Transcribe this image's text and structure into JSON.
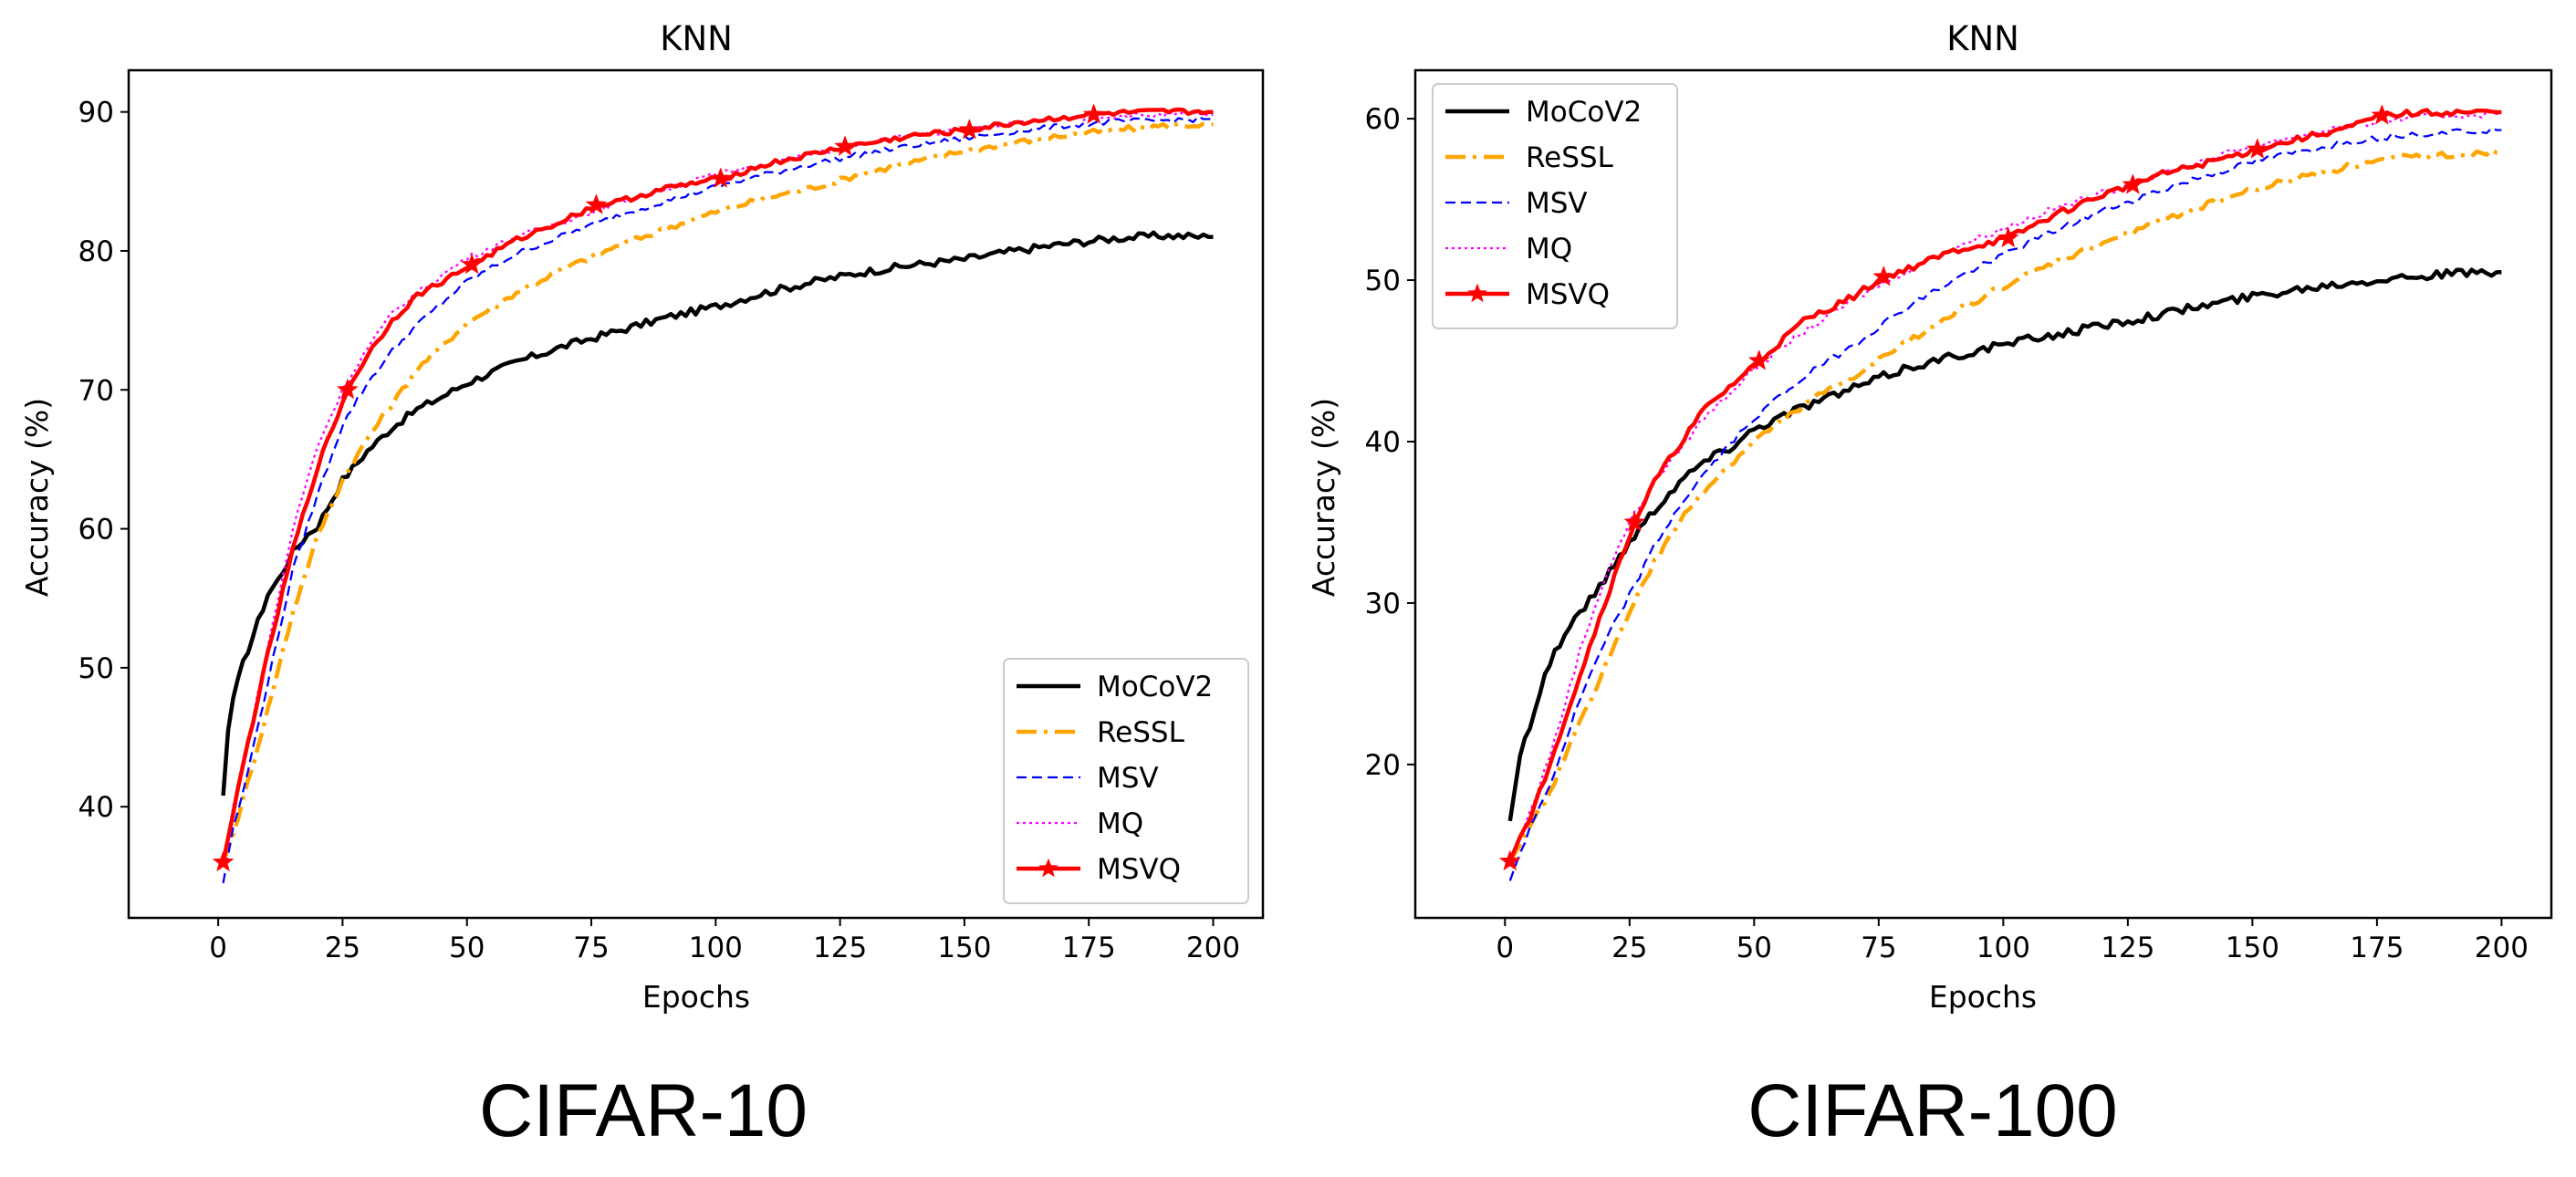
{
  "chart_data": [
    {
      "type": "line",
      "title": "KNN",
      "caption": "CIFAR-10",
      "xlabel": "Epochs",
      "ylabel": "Accuracy (%)",
      "xlim": [
        -18,
        210
      ],
      "ylim": [
        32,
        93
      ],
      "xticks": [
        0,
        25,
        50,
        75,
        100,
        125,
        150,
        175,
        200
      ],
      "yticks": [
        40,
        50,
        60,
        70,
        80,
        90
      ],
      "grid": false,
      "legend_position": "lower-right",
      "series": [
        {
          "name": "MoCoV2",
          "color": "#000000",
          "style": "solid",
          "x": [
            1,
            2,
            3,
            5,
            7,
            10,
            12,
            15,
            18,
            20,
            25,
            30,
            35,
            40,
            45,
            50,
            60,
            70,
            80,
            90,
            100,
            110,
            120,
            130,
            140,
            150,
            160,
            170,
            180,
            190,
            200
          ],
          "y": [
            40.8,
            45.5,
            47.8,
            50.3,
            52.3,
            55.3,
            56.3,
            58.3,
            59.6,
            60.2,
            63.5,
            65.6,
            67.3,
            68.6,
            69.5,
            70.5,
            72.0,
            73.2,
            74.2,
            75.2,
            76.0,
            77.0,
            77.8,
            78.5,
            79.0,
            79.4,
            80.0,
            80.5,
            80.9,
            81.1,
            81.0
          ]
        },
        {
          "name": "ReSSL",
          "color": "#FFA500",
          "style": "dashdot",
          "x": [
            1,
            3,
            5,
            10,
            15,
            20,
            25,
            30,
            35,
            40,
            50,
            60,
            70,
            80,
            90,
            100,
            110,
            120,
            130,
            140,
            150,
            160,
            170,
            180,
            190,
            200
          ],
          "y": [
            36.0,
            38.0,
            40.5,
            47.0,
            54.0,
            59.5,
            63.5,
            66.5,
            69.0,
            71.5,
            74.8,
            77.0,
            78.8,
            80.3,
            81.6,
            82.8,
            83.8,
            84.6,
            85.6,
            86.4,
            87.2,
            87.8,
            88.3,
            88.7,
            89.0,
            89.1
          ]
        },
        {
          "name": "MSV",
          "color": "#0000FF",
          "style": "dashed",
          "x": [
            1,
            3,
            5,
            10,
            15,
            20,
            25,
            30,
            35,
            40,
            50,
            60,
            70,
            80,
            90,
            100,
            110,
            120,
            130,
            140,
            150,
            160,
            170,
            180,
            190,
            200
          ],
          "y": [
            34.5,
            38.5,
            41.0,
            49.0,
            57.0,
            62.5,
            67.5,
            70.5,
            72.8,
            74.7,
            77.8,
            79.8,
            81.2,
            82.5,
            83.6,
            84.6,
            85.5,
            86.3,
            87.0,
            87.6,
            88.1,
            88.6,
            89.0,
            89.3,
            89.4,
            89.5
          ]
        },
        {
          "name": "MQ",
          "color": "#FF00FF",
          "style": "dotted",
          "x": [
            1,
            3,
            5,
            10,
            15,
            20,
            25,
            30,
            35,
            40,
            50,
            60,
            70,
            80,
            90,
            100,
            110,
            120,
            130,
            140,
            150,
            160,
            170,
            180,
            190,
            200
          ],
          "y": [
            36.0,
            40.0,
            43.0,
            51.5,
            60.0,
            66.0,
            70.0,
            73.0,
            75.5,
            77.0,
            79.5,
            81.0,
            82.2,
            83.4,
            84.5,
            85.5,
            86.3,
            87.0,
            87.7,
            88.3,
            88.8,
            89.2,
            89.5,
            89.7,
            89.8,
            89.8
          ]
        },
        {
          "name": "MSVQ",
          "color": "#FF0000",
          "style": "solid-star",
          "x": [
            1,
            3,
            5,
            10,
            15,
            20,
            26,
            30,
            35,
            40,
            51,
            60,
            70,
            76,
            80,
            90,
            101,
            110,
            120,
            126,
            130,
            140,
            151,
            160,
            170,
            176,
            180,
            190,
            200
          ],
          "y": [
            36.0,
            39.5,
            43.0,
            51.0,
            58.5,
            64.5,
            70.0,
            72.5,
            75.0,
            76.8,
            79.0,
            80.8,
            82.3,
            83.3,
            83.5,
            84.5,
            85.2,
            86.2,
            87.0,
            87.5,
            87.7,
            88.3,
            88.7,
            89.2,
            89.6,
            89.8,
            89.9,
            90.0,
            90.0
          ],
          "markers_x": [
            1,
            26,
            51,
            76,
            101,
            126,
            151,
            176
          ]
        }
      ]
    },
    {
      "type": "line",
      "title": "KNN",
      "caption": "CIFAR-100",
      "xlabel": "Epochs",
      "ylabel": "Accuracy (%)",
      "xlim": [
        -18,
        210
      ],
      "ylim": [
        10.5,
        63
      ],
      "xticks": [
        0,
        25,
        50,
        75,
        100,
        125,
        150,
        175,
        200
      ],
      "yticks": [
        20,
        30,
        40,
        50,
        60
      ],
      "grid": false,
      "legend_position": "upper-left",
      "series": [
        {
          "name": "MoCoV2",
          "color": "#000000",
          "style": "solid",
          "x": [
            1,
            2,
            3,
            5,
            8,
            10,
            13,
            15,
            18,
            20,
            25,
            30,
            35,
            40,
            45,
            50,
            60,
            70,
            80,
            90,
            100,
            110,
            120,
            130,
            140,
            150,
            160,
            170,
            180,
            190,
            200
          ],
          "y": [
            16.5,
            18.5,
            20.5,
            22.5,
            25.5,
            27.0,
            28.5,
            29.5,
            30.5,
            31.5,
            33.8,
            35.8,
            37.5,
            38.8,
            39.6,
            40.8,
            42.2,
            43.3,
            44.5,
            45.3,
            46.0,
            46.6,
            47.2,
            47.8,
            48.4,
            49.0,
            49.5,
            49.9,
            50.2,
            50.4,
            50.5
          ]
        },
        {
          "name": "ReSSL",
          "color": "#FFA500",
          "style": "dashdot",
          "x": [
            1,
            3,
            5,
            10,
            15,
            20,
            25,
            30,
            35,
            40,
            50,
            60,
            70,
            80,
            90,
            100,
            110,
            120,
            130,
            140,
            150,
            160,
            170,
            180,
            190,
            200
          ],
          "y": [
            14.0,
            15.0,
            16.0,
            19.0,
            22.5,
            26.0,
            29.5,
            32.5,
            35.0,
            37.0,
            40.0,
            42.3,
            44.0,
            46.0,
            48.0,
            49.6,
            51.0,
            52.3,
            53.5,
            54.6,
            55.6,
            56.4,
            57.1,
            57.6,
            57.8,
            57.9
          ]
        },
        {
          "name": "MSV",
          "color": "#0000FF",
          "style": "dashed",
          "x": [
            1,
            3,
            5,
            10,
            15,
            20,
            25,
            30,
            35,
            40,
            50,
            60,
            70,
            80,
            90,
            100,
            110,
            120,
            130,
            140,
            150,
            160,
            170,
            180,
            190,
            200
          ],
          "y": [
            12.8,
            14.5,
            16.0,
            19.5,
            24.0,
            27.5,
            30.5,
            33.5,
            36.0,
            38.0,
            41.5,
            44.0,
            46.0,
            48.2,
            50.0,
            51.6,
            53.0,
            54.3,
            55.4,
            56.4,
            57.3,
            58.0,
            58.6,
            59.0,
            59.2,
            59.3
          ]
        },
        {
          "name": "MQ",
          "color": "#FF00FF",
          "style": "dotted",
          "x": [
            1,
            3,
            5,
            10,
            15,
            20,
            25,
            30,
            35,
            40,
            50,
            60,
            70,
            80,
            90,
            100,
            110,
            120,
            130,
            140,
            150,
            160,
            170,
            180,
            190,
            200
          ],
          "y": [
            14.0,
            15.5,
            17.0,
            21.5,
            27.0,
            31.5,
            35.0,
            37.5,
            39.5,
            41.5,
            44.5,
            46.8,
            48.8,
            50.5,
            52.0,
            53.2,
            54.4,
            55.4,
            56.4,
            57.4,
            58.3,
            59.0,
            59.6,
            60.0,
            60.2,
            60.3
          ]
        },
        {
          "name": "MSVQ",
          "color": "#FF0000",
          "style": "solid-star",
          "x": [
            1,
            3,
            5,
            10,
            15,
            20,
            26,
            30,
            35,
            40,
            51,
            60,
            70,
            76,
            80,
            90,
            101,
            110,
            120,
            126,
            130,
            140,
            151,
            160,
            170,
            176,
            180,
            190,
            200
          ],
          "y": [
            14.0,
            15.5,
            16.5,
            21.0,
            25.5,
            30.0,
            35.0,
            37.5,
            39.8,
            42.0,
            45.0,
            47.5,
            49.0,
            50.2,
            50.6,
            51.8,
            52.6,
            54.0,
            55.3,
            55.9,
            56.4,
            57.2,
            58.1,
            58.8,
            59.5,
            60.2,
            60.3,
            60.4,
            60.4
          ],
          "markers_x": [
            1,
            26,
            51,
            76,
            101,
            126,
            151,
            176
          ]
        }
      ]
    }
  ]
}
